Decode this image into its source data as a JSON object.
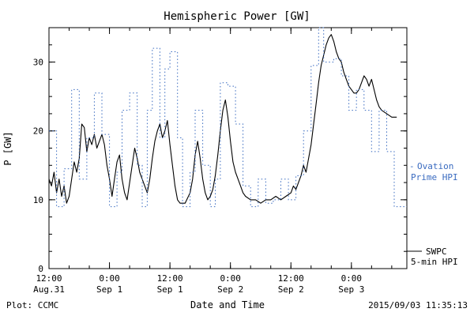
{
  "title": "Hemispheric Power [GW]",
  "footer": {
    "left": "Plot: CCMC",
    "right": "2015/09/03 11:35:13"
  },
  "legend": {
    "ovation_marker": "-",
    "ovation_line1": "Ovation",
    "ovation_line2": "Prime HPI",
    "swpc_line1": "SWPC",
    "swpc_line2": "5-min HPI"
  },
  "colors": {
    "ovation": "#3a6bc0",
    "swpc": "#000000",
    "frame": "#000000",
    "background": "#ffffff"
  },
  "chart_data": {
    "type": "line",
    "title": "Hemispheric Power [GW]",
    "xlabel": "Date and Time",
    "ylabel": "P [GW]",
    "x_unit": "hours since 12:00 Aug.31 2015",
    "xlim_hours": [
      0,
      71
    ],
    "ylim": [
      0,
      35
    ],
    "y_ticks": [
      0,
      10,
      20,
      30
    ],
    "y_minor_step": 2.5,
    "x_minor_step_hours": 4,
    "grid": false,
    "legend_position": "right-outside",
    "x_ticks": [
      {
        "hour": 0,
        "time": "12:00",
        "date": "Aug.31"
      },
      {
        "hour": 12,
        "time": "0:00",
        "date": "Sep 1"
      },
      {
        "hour": 24,
        "time": "12:00",
        "date": "Sep 1"
      },
      {
        "hour": 36,
        "time": "0:00",
        "date": "Sep 2"
      },
      {
        "hour": 48,
        "time": "12:00",
        "date": "Sep 2"
      },
      {
        "hour": 60,
        "time": "0:00",
        "date": "Sep 3"
      }
    ],
    "series": [
      {
        "name": "SWPC 5-min HPI",
        "style": "solid",
        "color": "#000000",
        "points": [
          [
            0,
            13
          ],
          [
            0.5,
            12
          ],
          [
            1,
            14
          ],
          [
            1.5,
            11
          ],
          [
            2,
            13
          ],
          [
            2.5,
            10.5
          ],
          [
            3,
            12
          ],
          [
            3.5,
            9.5
          ],
          [
            4,
            10.5
          ],
          [
            4.5,
            13
          ],
          [
            5,
            15.5
          ],
          [
            5.5,
            14
          ],
          [
            6,
            16
          ],
          [
            6.5,
            21
          ],
          [
            7,
            20.5
          ],
          [
            7.5,
            17
          ],
          [
            8,
            19
          ],
          [
            8.5,
            18
          ],
          [
            9,
            19.5
          ],
          [
            9.5,
            17.5
          ],
          [
            10,
            18.5
          ],
          [
            10.5,
            19.5
          ],
          [
            11,
            18
          ],
          [
            11.5,
            15
          ],
          [
            12,
            13
          ],
          [
            12.5,
            10.5
          ],
          [
            13,
            13
          ],
          [
            13.5,
            15.5
          ],
          [
            14,
            16.5
          ],
          [
            14.5,
            13
          ],
          [
            15,
            11
          ],
          [
            15.5,
            10
          ],
          [
            16,
            12.5
          ],
          [
            16.5,
            15
          ],
          [
            17,
            17.5
          ],
          [
            17.5,
            16
          ],
          [
            18,
            14
          ],
          [
            18.5,
            13
          ],
          [
            19,
            12
          ],
          [
            19.5,
            11
          ],
          [
            20,
            13
          ],
          [
            20.5,
            16
          ],
          [
            21,
            18.5
          ],
          [
            21.5,
            20
          ],
          [
            22,
            21
          ],
          [
            22.5,
            19
          ],
          [
            23,
            20
          ],
          [
            23.5,
            21.5
          ],
          [
            24,
            18
          ],
          [
            24.5,
            15
          ],
          [
            25,
            12
          ],
          [
            25.5,
            10
          ],
          [
            26,
            9.5
          ],
          [
            27,
            9.5
          ],
          [
            28,
            11
          ],
          [
            28.5,
            13
          ],
          [
            29,
            16.5
          ],
          [
            29.5,
            18.5
          ],
          [
            30,
            16
          ],
          [
            30.5,
            13
          ],
          [
            31,
            11
          ],
          [
            31.5,
            10
          ],
          [
            32,
            10.5
          ],
          [
            32.5,
            11.5
          ],
          [
            33,
            13.5
          ],
          [
            33.5,
            16.5
          ],
          [
            34,
            20
          ],
          [
            34.5,
            23
          ],
          [
            35,
            24.5
          ],
          [
            35.5,
            22
          ],
          [
            36,
            18.5
          ],
          [
            36.5,
            15.5
          ],
          [
            37,
            14
          ],
          [
            37.5,
            13
          ],
          [
            38,
            12
          ],
          [
            38.5,
            11
          ],
          [
            39,
            10.5
          ],
          [
            40,
            10
          ],
          [
            41,
            10
          ],
          [
            42,
            9.5
          ],
          [
            43,
            10
          ],
          [
            44,
            10
          ],
          [
            45,
            10.5
          ],
          [
            46,
            10
          ],
          [
            47,
            10.5
          ],
          [
            48,
            11
          ],
          [
            48.5,
            12
          ],
          [
            49,
            11.5
          ],
          [
            49.5,
            12.5
          ],
          [
            50,
            13.5
          ],
          [
            50.5,
            15
          ],
          [
            51,
            14
          ],
          [
            51.5,
            16
          ],
          [
            52,
            18
          ],
          [
            52.5,
            21
          ],
          [
            53,
            24
          ],
          [
            53.5,
            27
          ],
          [
            54,
            29.5
          ],
          [
            54.5,
            31
          ],
          [
            55,
            32.5
          ],
          [
            55.5,
            33.5
          ],
          [
            56,
            34
          ],
          [
            56.5,
            33
          ],
          [
            57,
            31.5
          ],
          [
            57.5,
            30.5
          ],
          [
            58,
            30
          ],
          [
            58.5,
            28.5
          ],
          [
            59,
            27.5
          ],
          [
            59.5,
            26.5
          ],
          [
            60,
            26
          ],
          [
            60.5,
            25.5
          ],
          [
            61,
            25.5
          ],
          [
            61.5,
            26
          ],
          [
            62,
            27
          ],
          [
            62.5,
            28
          ],
          [
            63,
            27.5
          ],
          [
            63.5,
            26.5
          ],
          [
            64,
            27.5
          ],
          [
            64.5,
            26
          ],
          [
            65,
            24.5
          ],
          [
            65.5,
            23.5
          ],
          [
            66,
            23
          ],
          [
            67,
            22.5
          ],
          [
            68,
            22
          ],
          [
            69,
            22
          ]
        ]
      },
      {
        "name": "Ovation Prime HPI",
        "style": "dotted-step",
        "color": "#3a6bc0",
        "points": [
          [
            0,
            20
          ],
          [
            1.5,
            9
          ],
          [
            3,
            14.5
          ],
          [
            4.5,
            26
          ],
          [
            6,
            13
          ],
          [
            7.5,
            19
          ],
          [
            9,
            25.5
          ],
          [
            10.5,
            19.5
          ],
          [
            12,
            9
          ],
          [
            13.5,
            14
          ],
          [
            14.5,
            23
          ],
          [
            16,
            25.5
          ],
          [
            17.5,
            15
          ],
          [
            18.5,
            9
          ],
          [
            19.5,
            23
          ],
          [
            20.5,
            32
          ],
          [
            22,
            19
          ],
          [
            23,
            29
          ],
          [
            24,
            31.5
          ],
          [
            25.5,
            19
          ],
          [
            26.5,
            9
          ],
          [
            28,
            14
          ],
          [
            29,
            23
          ],
          [
            30.5,
            15
          ],
          [
            32,
            9
          ],
          [
            33,
            13
          ],
          [
            34,
            27
          ],
          [
            35.5,
            26.5
          ],
          [
            37,
            21
          ],
          [
            38.5,
            12
          ],
          [
            40,
            9
          ],
          [
            41.5,
            13
          ],
          [
            43,
            9.5
          ],
          [
            44.5,
            10
          ],
          [
            46,
            13
          ],
          [
            47.5,
            10
          ],
          [
            49,
            13.5
          ],
          [
            50.5,
            20
          ],
          [
            52,
            29.5
          ],
          [
            53.5,
            35
          ],
          [
            54.5,
            30
          ],
          [
            56.5,
            30.5
          ],
          [
            58,
            28
          ],
          [
            59.5,
            23
          ],
          [
            61,
            26
          ],
          [
            62.5,
            23
          ],
          [
            64,
            17
          ],
          [
            65.5,
            23
          ],
          [
            67,
            17
          ],
          [
            68.5,
            9
          ]
        ]
      }
    ]
  }
}
